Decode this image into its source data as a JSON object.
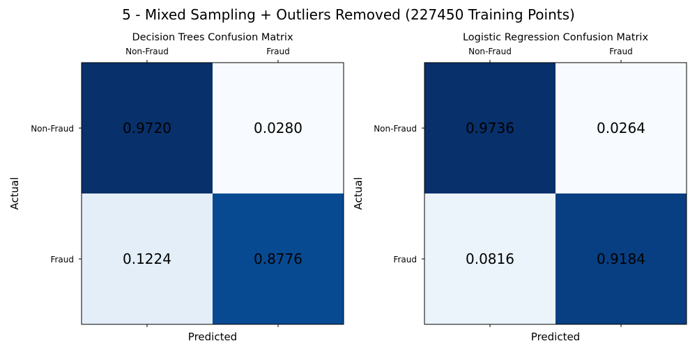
{
  "figure_title": "5 - Mixed Sampling + Outliers Removed (227450 Training Points)",
  "chart_data": [
    {
      "type": "heatmap",
      "title": "Decision Trees Confusion Matrix",
      "xlabel": "Predicted",
      "ylabel": "Actual",
      "x_categories": [
        "Non-Fraud",
        "Fraud"
      ],
      "y_categories": [
        "Non-Fraud",
        "Fraud"
      ],
      "x_tick_position": "top",
      "colormap": "Blues",
      "values": [
        [
          0.972,
          0.028
        ],
        [
          0.1224,
          0.8776
        ]
      ],
      "labels": [
        [
          "0.9720",
          "0.0280"
        ],
        [
          "0.1224",
          "0.8776"
        ]
      ]
    },
    {
      "type": "heatmap",
      "title": "Logistic Regression Confusion Matrix",
      "xlabel": "Predicted",
      "ylabel": "Actual",
      "x_categories": [
        "Non-Fraud",
        "Fraud"
      ],
      "y_categories": [
        "Non-Fraud",
        "Fraud"
      ],
      "x_tick_position": "top",
      "colormap": "Blues",
      "values": [
        [
          0.9736,
          0.0264
        ],
        [
          0.0816,
          0.9184
        ]
      ],
      "labels": [
        [
          "0.9736",
          "0.0264"
        ],
        [
          "0.0816",
          "0.9184"
        ]
      ]
    }
  ]
}
